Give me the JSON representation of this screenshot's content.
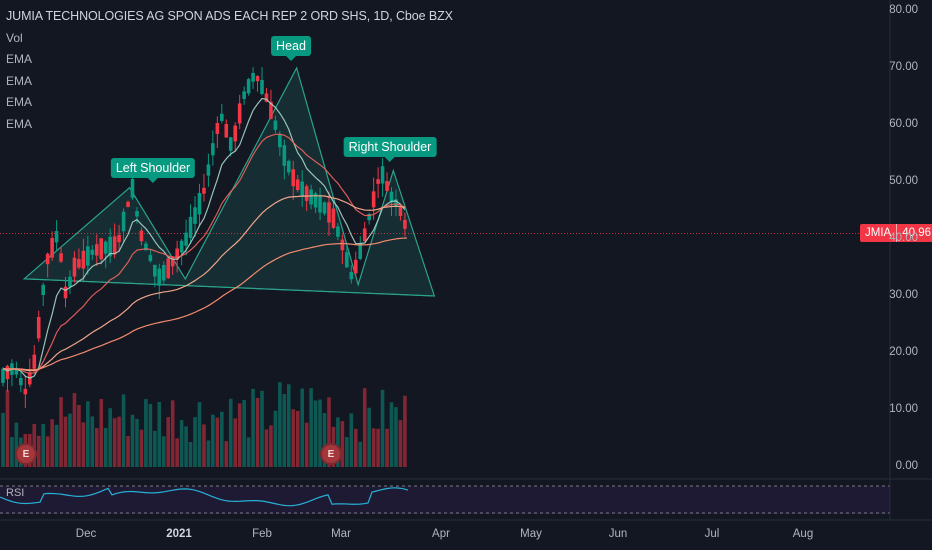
{
  "header": {
    "title": "JUMIA TECHNOLOGIES AG SPON ADS EACH REP 2 ORD SHS, 1D, Cboe BZX",
    "indicators": [
      "Vol",
      "EMA",
      "EMA",
      "EMA",
      "EMA"
    ]
  },
  "price_tag": {
    "symbol": "JMIA",
    "value": "40.96"
  },
  "annotations": {
    "left": "Left Shoulder",
    "head": "Head",
    "right": "Right Shoulder"
  },
  "rsi_label": "RSI",
  "earnings_marker": "E",
  "colors": {
    "up": "#089981",
    "down": "#f23645",
    "pattern": "#2aa38c",
    "ema_fast": "#a5d6c8",
    "ema_mid": "#f2635c",
    "ema_slow": "#f0a58a",
    "rsi": "#26b0d6"
  },
  "chart_data": {
    "type": "candlestick",
    "y_ticks": [
      "80.00",
      "70.00",
      "60.00",
      "50.00",
      "40.00",
      "30.00",
      "20.00",
      "10.00",
      "0.00"
    ],
    "x_ticks": [
      "Dec",
      "2021",
      "Feb",
      "Mar",
      "Apr",
      "May",
      "Jun",
      "Jul",
      "Aug"
    ],
    "ylim": [
      0,
      80
    ],
    "last_price": 40.96,
    "head_and_shoulders": [
      {
        "date": "2020-11-10",
        "price": 33
      },
      {
        "date": "2020-12-16",
        "price": 49
      },
      {
        "date": "2021-01-04",
        "price": 33
      },
      {
        "date": "2021-02-11",
        "price": 70
      },
      {
        "date": "2021-03-04",
        "price": 32
      },
      {
        "date": "2021-03-16",
        "price": 52
      },
      {
        "date": "2021-03-30",
        "price": 30
      }
    ]
  }
}
